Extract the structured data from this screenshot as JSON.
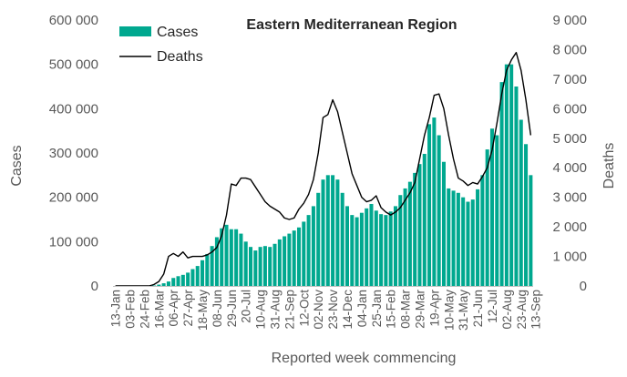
{
  "chart_data": {
    "type": "bar",
    "title": "Eastern Mediterranean Region",
    "xlabel": "Reported week commencing",
    "ylabel": "Cases",
    "y2label": "Deaths",
    "ylim": [
      0,
      600000
    ],
    "y2lim": [
      0,
      9000
    ],
    "y_ticks": [
      "0",
      "100 000",
      "200 000",
      "300 000",
      "400 000",
      "500 000",
      "600 000"
    ],
    "y2_ticks": [
      "0",
      "1 000",
      "2 000",
      "3 000",
      "4 000",
      "5 000",
      "6 000",
      "7 000",
      "8 000",
      "9 000"
    ],
    "x_tick_labels": [
      "13-Jan",
      "03-Feb",
      "24-Feb",
      "16-Mar",
      "06-Apr",
      "27-Apr",
      "18-May",
      "08-Jun",
      "29-Jun",
      "20-Jul",
      "10-Aug",
      "31-Aug",
      "21-Sep",
      "12-Oct",
      "02-Nov",
      "23-Nov",
      "14-Dec",
      "04-Jan",
      "25-Jan",
      "15-Feb",
      "08-Mar",
      "29-Mar",
      "19-Apr",
      "10-May",
      "31-May",
      "21-Jun",
      "12-Jul",
      "02-Aug",
      "23-Aug",
      "13-Sep"
    ],
    "legend_position": "top-left",
    "grid": false,
    "colors": {
      "cases": "#00A88F",
      "deaths": "#000000"
    },
    "series": [
      {
        "name": "Cases",
        "kind": "bar",
        "axis": "left",
        "values": [
          0,
          0,
          0,
          0,
          0,
          0,
          0,
          0,
          1000,
          3000,
          6000,
          10000,
          18000,
          22000,
          25000,
          30000,
          38000,
          45000,
          58000,
          72000,
          90000,
          110000,
          130000,
          138000,
          128000,
          128000,
          118000,
          100000,
          88000,
          80000,
          88000,
          90000,
          88000,
          95000,
          105000,
          112000,
          118000,
          125000,
          132000,
          145000,
          160000,
          180000,
          210000,
          240000,
          250000,
          250000,
          240000,
          210000,
          180000,
          160000,
          155000,
          165000,
          175000,
          185000,
          170000,
          162000,
          160000,
          168000,
          180000,
          205000,
          220000,
          235000,
          255000,
          275000,
          298000,
          365000,
          380000,
          340000,
          280000,
          220000,
          215000,
          210000,
          200000,
          190000,
          195000,
          218000,
          250000,
          308000,
          355000,
          340000,
          460000,
          500000,
          500000,
          450000,
          375000,
          320000,
          250000
        ]
      },
      {
        "name": "Deaths",
        "kind": "line",
        "axis": "right",
        "values": [
          0,
          0,
          0,
          0,
          0,
          0,
          0,
          0,
          50,
          150,
          400,
          1000,
          1100,
          1000,
          1150,
          950,
          1000,
          1000,
          1000,
          1050,
          1150,
          1300,
          1700,
          2400,
          3450,
          3400,
          3650,
          3650,
          3600,
          3350,
          3100,
          2850,
          2700,
          2600,
          2500,
          2300,
          2250,
          2300,
          2600,
          2800,
          3100,
          3600,
          4500,
          5700,
          5800,
          6300,
          5900,
          5200,
          4500,
          3800,
          3400,
          3000,
          2850,
          2900,
          3050,
          2650,
          2500,
          2400,
          2500,
          2650,
          2900,
          3150,
          3500,
          4300,
          5100,
          5700,
          6450,
          6500,
          6000,
          5100,
          4300,
          3650,
          3550,
          3400,
          3500,
          3450,
          3700,
          4000,
          4600,
          5500,
          6500,
          7300,
          7650,
          7900,
          7300,
          6300,
          5100
        ]
      }
    ]
  }
}
